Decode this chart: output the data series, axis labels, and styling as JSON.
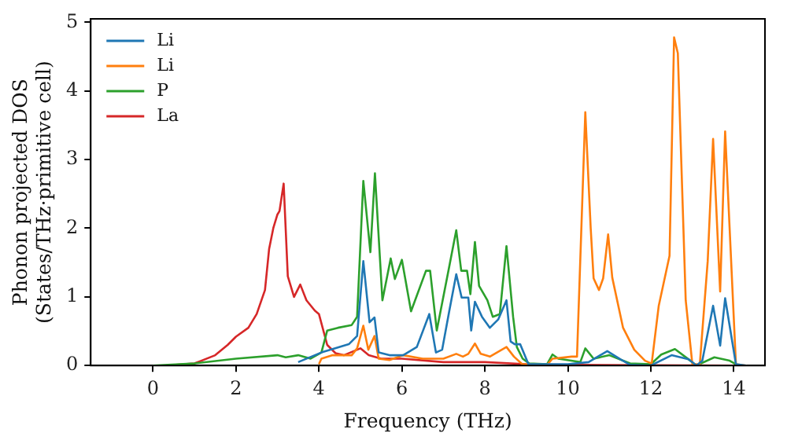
{
  "chart_data": {
    "type": "line",
    "xlabel": "Frequency (THz)",
    "ylabel": "Phonon projected DOS\n(States/THz·primitive cell)",
    "xlim": [
      -1.5,
      14.75
    ],
    "ylim": [
      0,
      5.05
    ],
    "xticks": [
      0,
      2,
      4,
      6,
      8,
      10,
      12,
      14
    ],
    "yticks": [
      0,
      1,
      2,
      3,
      4,
      5
    ],
    "grid": false,
    "legend": "top left",
    "marker": "none",
    "line_style": "solid",
    "series": [
      {
        "name": "Li",
        "color": "#1f77b4",
        "x": [
          3.5,
          4.06,
          4.33,
          4.72,
          4.92,
          5.07,
          5.22,
          5.34,
          5.44,
          5.7,
          6.03,
          6.36,
          6.66,
          6.82,
          6.97,
          7.14,
          7.31,
          7.44,
          7.6,
          7.67,
          7.76,
          7.93,
          8.12,
          8.32,
          8.52,
          8.62,
          8.72,
          8.85,
          9.05,
          10,
          10.5,
          10.95,
          11.27,
          11.5,
          12,
          12.5,
          12.91,
          13.1,
          13.24,
          13.5,
          13.67,
          13.79,
          14.05,
          14.3
        ],
        "values": [
          0.05,
          0.19,
          0.24,
          0.31,
          0.43,
          1.52,
          0.63,
          0.7,
          0.19,
          0.15,
          0.15,
          0.27,
          0.75,
          0.19,
          0.23,
          0.79,
          1.33,
          0.99,
          0.99,
          0.51,
          0.93,
          0.71,
          0.55,
          0.67,
          0.95,
          0.35,
          0.31,
          0.31,
          0.02,
          0.02,
          0.05,
          0.21,
          0.09,
          0.01,
          0,
          0.15,
          0.09,
          0,
          0.07,
          0.87,
          0.29,
          0.98,
          0.02,
          0
        ]
      },
      {
        "name": "Li",
        "color": "#ff7f0e",
        "x": [
          4,
          4.06,
          4.33,
          4.79,
          4.92,
          5.07,
          5.19,
          5.34,
          5.44,
          5.7,
          6.03,
          6.5,
          7,
          7.31,
          7.47,
          7.6,
          7.76,
          7.9,
          8.12,
          8.52,
          8.7,
          8.9,
          9.5,
          9.63,
          10.09,
          10.22,
          10.42,
          10.55,
          10.62,
          10.75,
          10.85,
          10.97,
          11.07,
          11.33,
          11.6,
          11.86,
          12.02,
          12.19,
          12.45,
          12.56,
          12.65,
          12.84,
          13,
          13.18,
          13.37,
          13.5,
          13.67,
          13.79,
          14.05,
          14.3
        ],
        "values": [
          0.02,
          0.1,
          0.15,
          0.15,
          0.25,
          0.58,
          0.23,
          0.43,
          0.1,
          0.08,
          0.15,
          0.1,
          0.1,
          0.17,
          0.13,
          0.17,
          0.32,
          0.17,
          0.13,
          0.27,
          0.13,
          0.02,
          0.01,
          0.1,
          0.13,
          0.13,
          3.69,
          2.0,
          1.27,
          1.1,
          1.27,
          1.91,
          1.28,
          0.55,
          0.23,
          0.07,
          0.03,
          0.87,
          1.6,
          4.78,
          4.55,
          0.95,
          0.02,
          0.02,
          1.52,
          3.3,
          1.08,
          3.41,
          0.02,
          0
        ]
      },
      {
        "name": "P",
        "color": "#2ca02c",
        "x": [
          0,
          1,
          2,
          3,
          3.2,
          3.5,
          3.8,
          4.06,
          4.2,
          4.46,
          4.79,
          4.92,
          5.07,
          5.24,
          5.35,
          5.53,
          5.73,
          5.83,
          6,
          6.22,
          6.58,
          6.68,
          6.84,
          7.14,
          7.31,
          7.43,
          7.57,
          7.65,
          7.76,
          7.86,
          8.06,
          8.19,
          8.36,
          8.52,
          8.68,
          8.77,
          8.91,
          9.07,
          9.5,
          9.63,
          9.77,
          10.3,
          10.42,
          10.62,
          11,
          11.5,
          12,
          12.25,
          12.58,
          12.91,
          13.1,
          13.53,
          13.9,
          14.1
        ],
        "values": [
          0,
          0.03,
          0.1,
          0.15,
          0.12,
          0.15,
          0.1,
          0.19,
          0.51,
          0.55,
          0.59,
          0.71,
          2.69,
          1.65,
          2.8,
          0.95,
          1.56,
          1.26,
          1.54,
          0.79,
          1.38,
          1.38,
          0.51,
          1.44,
          1.97,
          1.38,
          1.38,
          1.04,
          1.8,
          1.16,
          0.95,
          0.71,
          0.75,
          1.74,
          0.71,
          0.27,
          0.1,
          0.03,
          0.02,
          0.16,
          0.1,
          0.05,
          0.25,
          0.1,
          0.15,
          0.03,
          0.02,
          0.16,
          0.24,
          0.09,
          0,
          0.12,
          0.07,
          0
        ]
      },
      {
        "name": "La",
        "color": "#d62728",
        "x": [
          0.3,
          1,
          1.5,
          1.8,
          2,
          2.3,
          2.5,
          2.7,
          2.8,
          2.9,
          3,
          3.05,
          3.15,
          3.25,
          3.4,
          3.55,
          3.7,
          3.9,
          4,
          4.2,
          4.4,
          4.6,
          5,
          5.2,
          5.5,
          6,
          7,
          8,
          9,
          10,
          14
        ],
        "values": [
          0,
          0.03,
          0.15,
          0.3,
          0.42,
          0.55,
          0.75,
          1.1,
          1.7,
          2.0,
          2.2,
          2.25,
          2.65,
          1.3,
          1.0,
          1.18,
          0.95,
          0.8,
          0.75,
          0.3,
          0.18,
          0.15,
          0.25,
          0.15,
          0.1,
          0.1,
          0.05,
          0.05,
          0.02,
          0.01,
          0
        ]
      }
    ]
  }
}
